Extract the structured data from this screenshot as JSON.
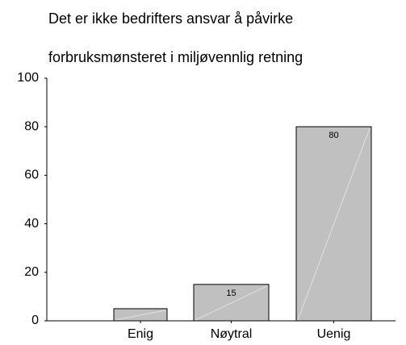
{
  "chart_data": {
    "type": "bar",
    "title": [
      "Det er ikke bedrifters ansvar å påvirke",
      "forbruksmønsteret i miljøvennlig retning"
    ],
    "categories": [
      "Enig",
      "Nøytral",
      "Uenig"
    ],
    "values": [
      5,
      15,
      80
    ],
    "value_labels": [
      null,
      "15",
      "80"
    ],
    "color": "#c0c0c0",
    "ylim": [
      0,
      100
    ],
    "yticks": [
      0,
      20,
      40,
      60,
      80,
      100
    ]
  }
}
